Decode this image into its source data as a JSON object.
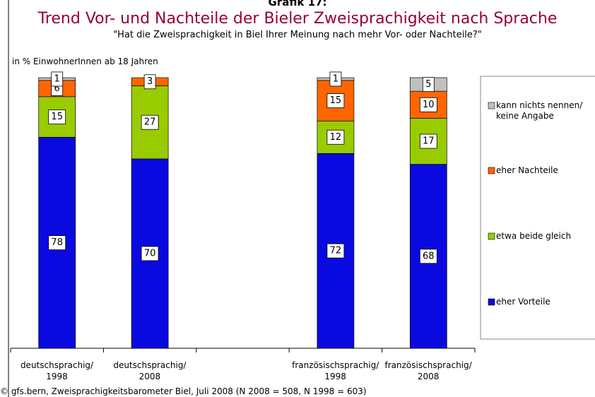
{
  "chart_data": {
    "type": "stacked_bar",
    "header": "Grafik 17:",
    "title": "Trend Vor- und Nachteile der Bieler Zweisprachigkeit nach Sprache",
    "subtitle": "\"Hat die Zweisprachigkeit in Biel Ihrer Meinung nach mehr Vor- oder Nachteile?\"",
    "y_label": "in % EinwohnerInnen ab 18 Jahren",
    "source": "© gfs.bern, Zweisprachigkeitsbarometer Biel, Juli 2008 (N 2008 = 508, N 1998 = 603)",
    "categories": [
      "deutschsprachig/\n1998",
      "deutschsprachig/\n2008",
      null,
      "französischsprachig/\n1998",
      "französischsprachig/\n2008"
    ],
    "ylim": [
      0,
      100
    ],
    "series": [
      {
        "name": "eher Vorteile",
        "color": "#0a0ae0",
        "values": [
          78,
          70,
          null,
          72,
          68
        ]
      },
      {
        "name": "etwa beide gleich",
        "color": "#99cc00",
        "values": [
          15,
          27,
          null,
          12,
          17
        ]
      },
      {
        "name": "eher Nachteile",
        "color": "#ff6600",
        "values": [
          6,
          3,
          null,
          15,
          10
        ]
      },
      {
        "name": "kann nichts nennen/\nkeine Angabe",
        "color": "#c0c0c0",
        "values": [
          1,
          null,
          null,
          1,
          5
        ]
      }
    ]
  }
}
